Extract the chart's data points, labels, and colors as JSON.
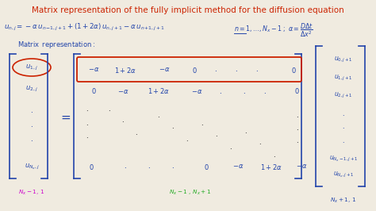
{
  "bg_color": "#f0ebe0",
  "title": "Matrix representation of the fully implicit method for the diffusion equation",
  "title_color": "#cc2200",
  "text_color": "#2244aa",
  "red_color": "#cc2200",
  "green_color": "#22aa22",
  "purple_color": "#cc00cc",
  "figsize": [
    4.74,
    2.66
  ],
  "dpi": 100
}
